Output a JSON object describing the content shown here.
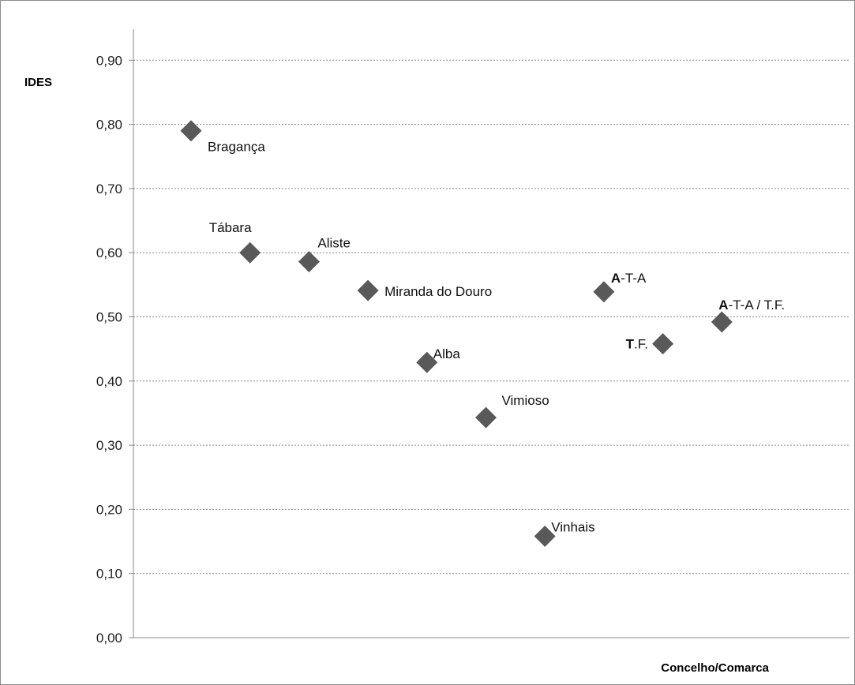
{
  "chart_data": {
    "type": "scatter",
    "title": "",
    "ylabel": "IDES",
    "xlabel": "Concelho/Comarca",
    "ylim": [
      0,
      0.95
    ],
    "yticks": [
      "0,00",
      "0,10",
      "0,20",
      "0,30",
      "0,40",
      "0,50",
      "0,60",
      "0,70",
      "0,80",
      "0,90"
    ],
    "grid": true,
    "legend": "none",
    "marker": "diamond",
    "marker_color": "#595959",
    "points": [
      {
        "x": 1,
        "y": 0.79,
        "label": "Bragança"
      },
      {
        "x": 2,
        "y": 0.6,
        "label": "Tábara"
      },
      {
        "x": 3,
        "y": 0.586,
        "label": "Aliste"
      },
      {
        "x": 4,
        "y": 0.541,
        "label": "Miranda do Douro"
      },
      {
        "x": 5,
        "y": 0.429,
        "label": "Alba"
      },
      {
        "x": 6,
        "y": 0.343,
        "label": "Vimioso"
      },
      {
        "x": 7,
        "y": 0.158,
        "label": "Vinhais"
      },
      {
        "x": 8,
        "y": 0.539,
        "label": "A-T-A",
        "label_bold": "A",
        "label_rest": "-T-A"
      },
      {
        "x": 9,
        "y": 0.458,
        "label": "T.F.",
        "label_bold": "T",
        "label_rest": ".F."
      },
      {
        "x": 10,
        "y": 0.492,
        "label": "A-T-A / T.F.",
        "label_bold": "A",
        "label_rest": "-T-A / T.F."
      }
    ]
  }
}
